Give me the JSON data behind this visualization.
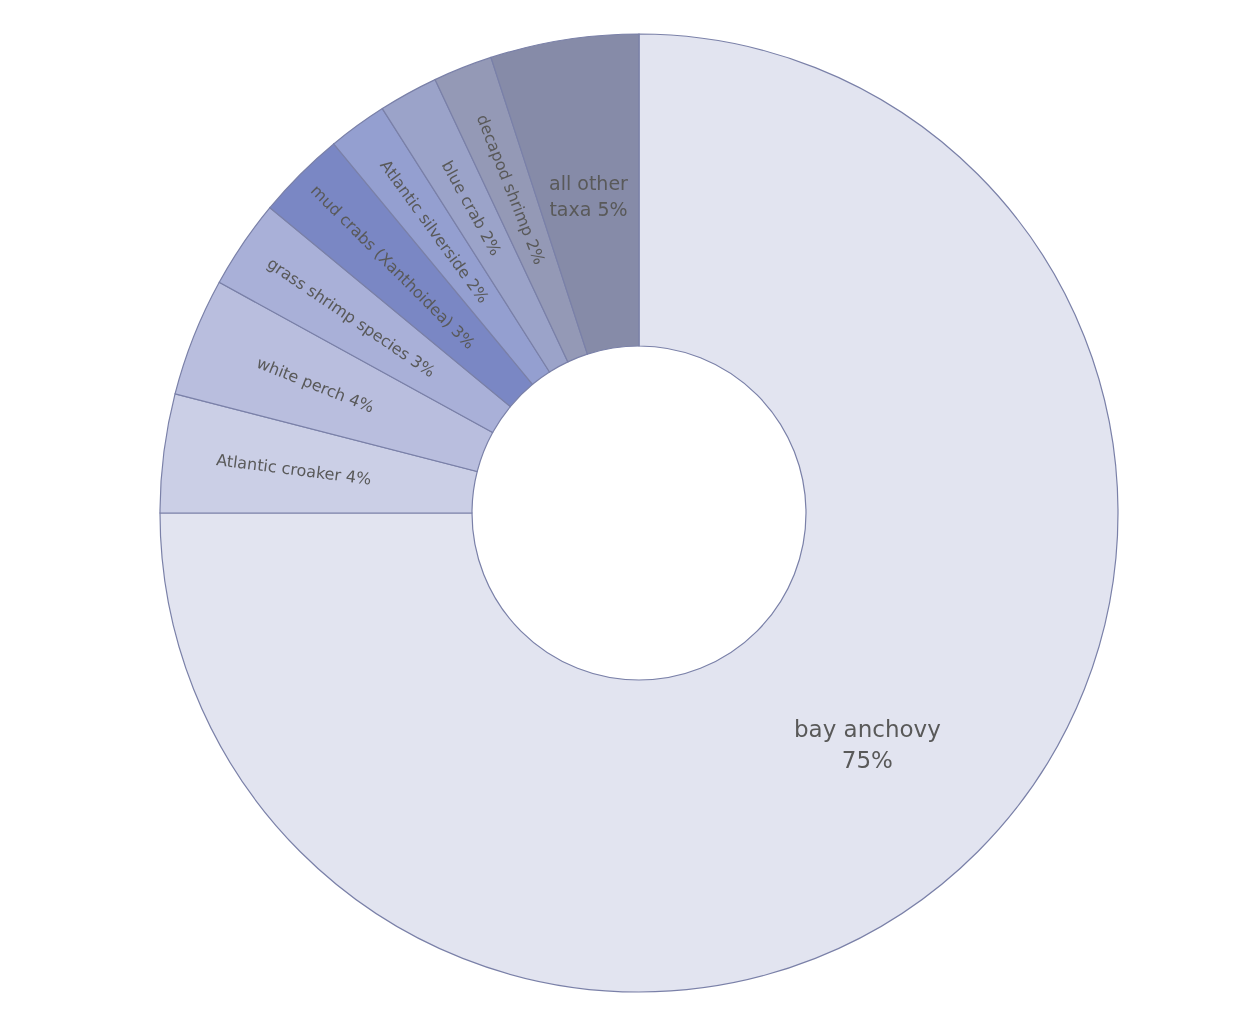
{
  "chart_data": {
    "type": "donut",
    "categories": [
      "bay anchovy",
      "Atlantic croaker",
      "white perch",
      "grass shrimp species",
      "mud crabs (Xanthoidea)",
      "Atlantic silverside",
      "blue crab",
      "decapod shrimp",
      "all other taxa"
    ],
    "values": [
      75,
      4,
      4,
      3,
      3,
      2,
      2,
      2,
      5
    ],
    "value_labels": [
      "75%",
      "4%",
      "4%",
      "3%",
      "3%",
      "2%",
      "2%",
      "2%",
      "5%"
    ],
    "colors": [
      "#e2e4f0",
      "#cbcfe6",
      "#b9bede",
      "#a9b0d8",
      "#7a87c4",
      "#949fd0",
      "#9ba3c9",
      "#9499b6",
      "#868ba8"
    ]
  }
}
